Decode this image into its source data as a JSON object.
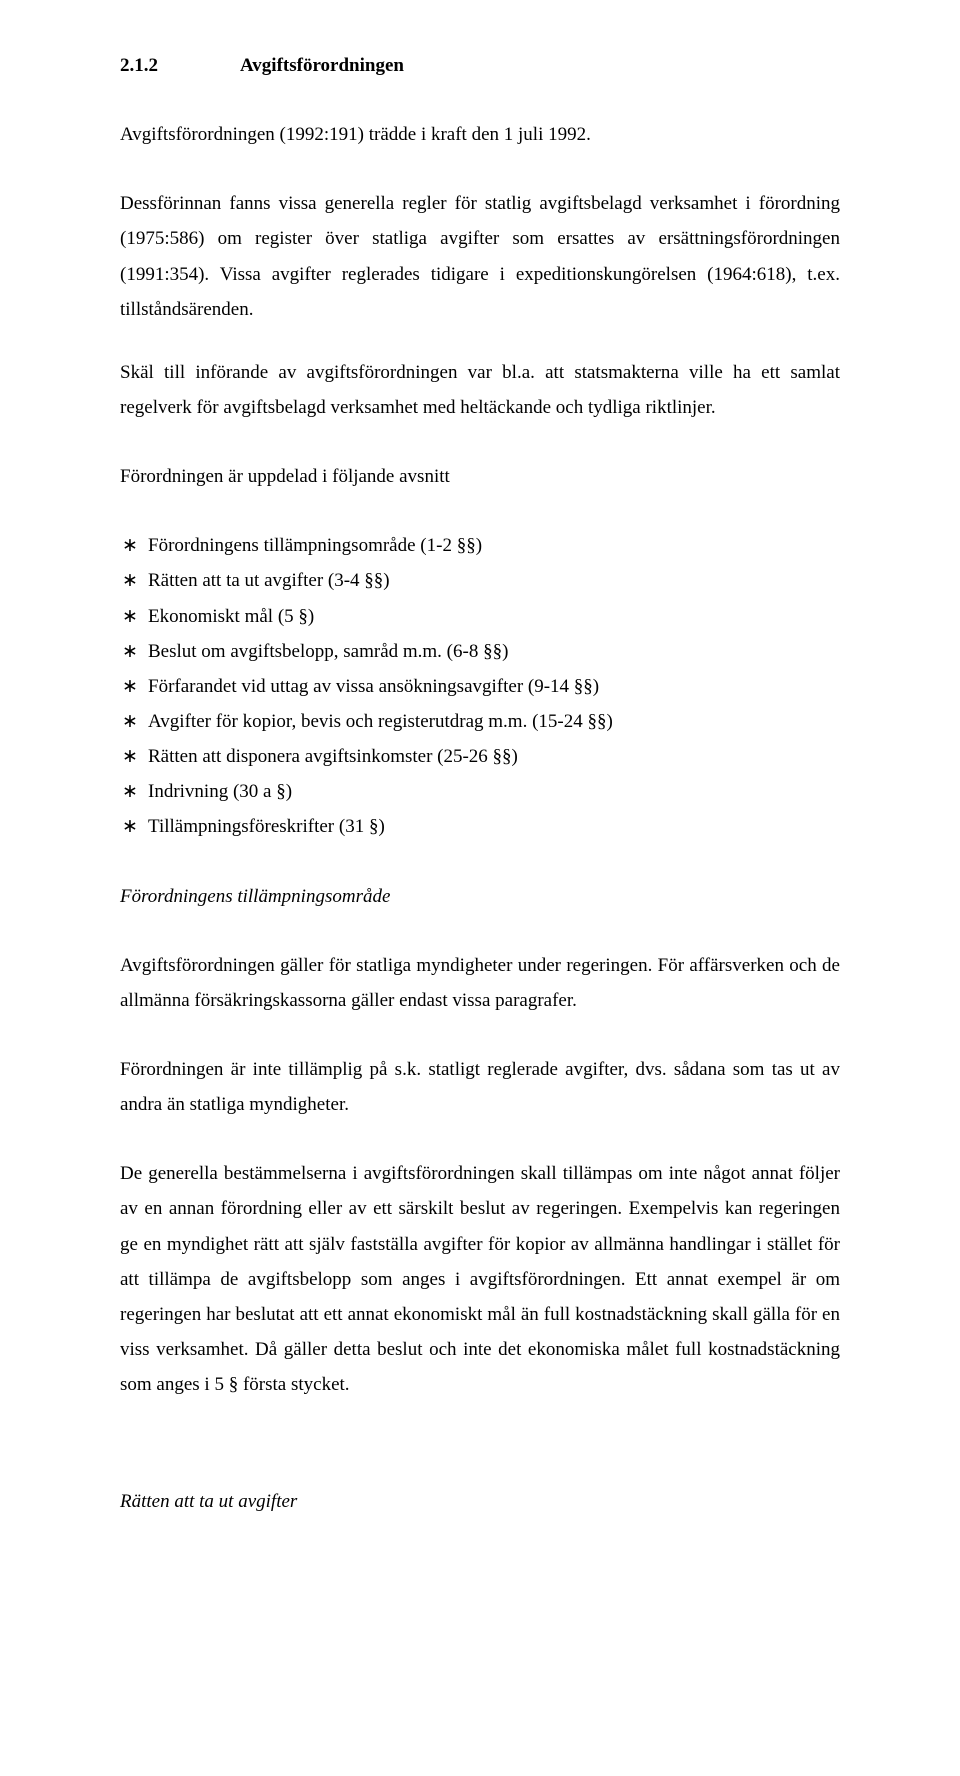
{
  "heading": {
    "number": "2.1.2",
    "title": "Avgiftsförordningen"
  },
  "para1": "Avgiftsförordningen (1992:191) trädde i kraft den 1 juli 1992.",
  "para2": "Dessförinnan fanns vissa generella regler för statlig avgiftsbelagd verksamhet i förordning (1975:586) om register över statliga avgifter som ersattes av ersättningsförordningen (1991:354). Vissa avgifter reglerades tidigare i expeditionskungörelsen (1964:618), t.ex. tillståndsärenden.",
  "para3": "Skäl till införande av avgiftsförordningen var bl.a. att statsmakterna ville ha ett samlat regelverk för avgiftsbelagd verksamhet med heltäckande och tydliga riktlinjer.",
  "para4": "Förordningen är uppdelad i följande avsnitt",
  "bullets": [
    "Förordningens tillämpningsområde (1-2 §§)",
    "Rätten att ta ut avgifter (3-4 §§)",
    "Ekonomiskt mål (5 §)",
    "Beslut om avgiftsbelopp, samråd m.m. (6-8 §§)",
    "Förfarandet vid uttag av vissa ansökningsavgifter (9-14 §§)",
    "Avgifter för kopior, bevis och registerutdrag m.m. (15-24 §§)",
    "Rätten att disponera avgiftsinkomster (25-26 §§)",
    "Indrivning (30 a §)",
    "Tillämpningsföreskrifter (31 §)"
  ],
  "section1_label": "Förordningens tillämpningsområde",
  "para5": "Avgiftsförordningen gäller för statliga myndigheter under regeringen. För affärsverken och de allmänna försäkringskassorna gäller endast vissa paragrafer.",
  "para6": "Förordningen är inte tillämplig på s.k. statligt reglerade avgifter, dvs. sådana som tas ut av andra än statliga myndigheter.",
  "para7": "De generella bestämmelserna i avgiftsförordningen skall tillämpas om inte något annat följer av en annan förordning eller av ett särskilt beslut av regeringen. Exempelvis kan regeringen ge en myndighet rätt att själv fastställa avgifter för kopior av allmänna handlingar i stället för att tillämpa de avgiftsbelopp som anges i avgiftsförordningen. Ett annat exempel är om regeringen har beslutat att ett annat ekonomiskt mål än full kostnadstäckning skall gälla för en viss verksamhet. Då gäller detta beslut och inte det ekonomiska målet full kostnadstäckning som anges i 5 § första stycket.",
  "section2_label": "Rätten att ta ut avgifter"
}
